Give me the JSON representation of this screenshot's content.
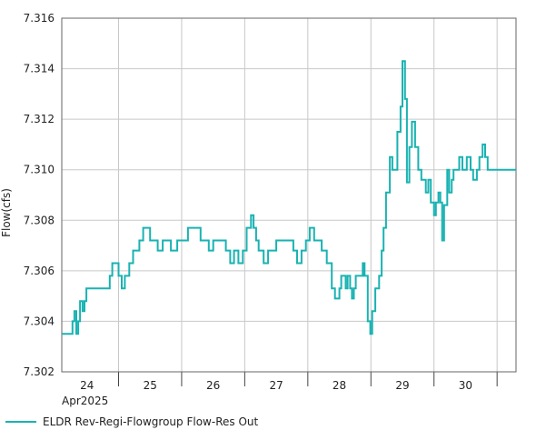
{
  "chart_data": {
    "type": "line",
    "title": "",
    "xlabel": "",
    "ylabel": "Flow(cfs)",
    "x_month_label": "Apr2025",
    "ylim": [
      7.302,
      7.316
    ],
    "xlim": [
      23.6,
      30.8
    ],
    "y_ticks": [
      "7.302",
      "7.304",
      "7.306",
      "7.308",
      "7.310",
      "7.312",
      "7.314",
      "7.316"
    ],
    "x_ticks": [
      "24",
      "25",
      "26",
      "27",
      "28",
      "29",
      "30"
    ],
    "grid": true,
    "legend_position": "bottom-left",
    "series": [
      {
        "name": "ELDR Rev-Regi-Flowgroup Flow-Res Out",
        "color": "#1ab2b2",
        "step": true,
        "x": [
          23.6,
          23.77,
          23.8,
          23.83,
          23.86,
          23.89,
          23.93,
          23.96,
          23.99,
          24.04,
          24.36,
          24.4,
          24.47,
          24.5,
          24.55,
          24.6,
          24.67,
          24.73,
          24.83,
          24.89,
          25.0,
          25.06,
          25.12,
          25.2,
          25.28,
          25.33,
          25.43,
          25.6,
          25.8,
          25.93,
          26.0,
          26.2,
          26.27,
          26.33,
          26.4,
          26.47,
          26.53,
          26.6,
          26.64,
          26.68,
          26.72,
          26.8,
          26.87,
          27.0,
          27.2,
          27.27,
          27.33,
          27.4,
          27.47,
          27.53,
          27.6,
          27.72,
          27.8,
          27.83,
          27.88,
          27.93,
          27.97,
          28.0,
          28.03,
          28.07,
          28.1,
          28.13,
          28.17,
          28.2,
          28.23,
          28.26,
          28.31,
          28.37,
          28.4,
          28.45,
          28.49,
          28.52,
          28.57,
          28.63,
          28.67,
          28.7,
          28.74,
          28.8,
          28.84,
          28.88,
          28.92,
          28.97,
          29.0,
          29.04,
          29.07,
          29.11,
          29.15,
          29.2,
          29.25,
          29.3,
          29.33,
          29.37,
          29.41,
          29.45,
          29.5,
          29.53,
          29.57,
          29.6,
          29.63,
          29.66,
          29.71,
          29.74,
          29.78,
          29.81,
          29.85,
          29.9,
          29.95,
          30.02,
          30.08,
          30.12,
          30.18,
          30.22,
          30.27,
          30.31,
          30.35,
          30.39,
          30.8
        ],
        "values": [
          7.3035,
          7.304,
          7.3044,
          7.3035,
          7.304,
          7.3048,
          7.3044,
          7.3048,
          7.3053,
          7.3053,
          7.3058,
          7.3063,
          7.3063,
          7.3058,
          7.3053,
          7.3058,
          7.3063,
          7.3068,
          7.3072,
          7.3077,
          7.3072,
          7.3072,
          7.3068,
          7.3072,
          7.3072,
          7.3068,
          7.3072,
          7.3077,
          7.3072,
          7.3068,
          7.3072,
          7.3068,
          7.3063,
          7.3068,
          7.3063,
          7.3068,
          7.3077,
          7.3082,
          7.3077,
          7.3072,
          7.3068,
          7.3063,
          7.3068,
          7.3072,
          7.3072,
          7.3068,
          7.3063,
          7.3068,
          7.3072,
          7.3077,
          7.3072,
          7.3068,
          7.3063,
          7.3063,
          7.3053,
          7.3049,
          7.3049,
          7.3053,
          7.3058,
          7.3058,
          7.3053,
          7.3058,
          7.3053,
          7.3049,
          7.3053,
          7.3058,
          7.3058,
          7.3063,
          7.3058,
          7.304,
          7.3035,
          7.3044,
          7.3053,
          7.3058,
          7.3068,
          7.3077,
          7.3091,
          7.3105,
          7.31,
          7.31,
          7.3115,
          7.3125,
          7.3143,
          7.3128,
          7.3095,
          7.3109,
          7.3119,
          7.3109,
          7.31,
          7.3096,
          7.3096,
          7.3091,
          7.3096,
          7.3087,
          7.3082,
          7.3087,
          7.3091,
          7.3087,
          7.3072,
          7.3086,
          7.31,
          7.3091,
          7.3096,
          7.31,
          7.31,
          7.3105,
          7.31,
          7.3105,
          7.31,
          7.3096,
          7.31,
          7.3105,
          7.311,
          7.3105,
          7.31,
          7.31,
          7.31
        ]
      }
    ]
  }
}
